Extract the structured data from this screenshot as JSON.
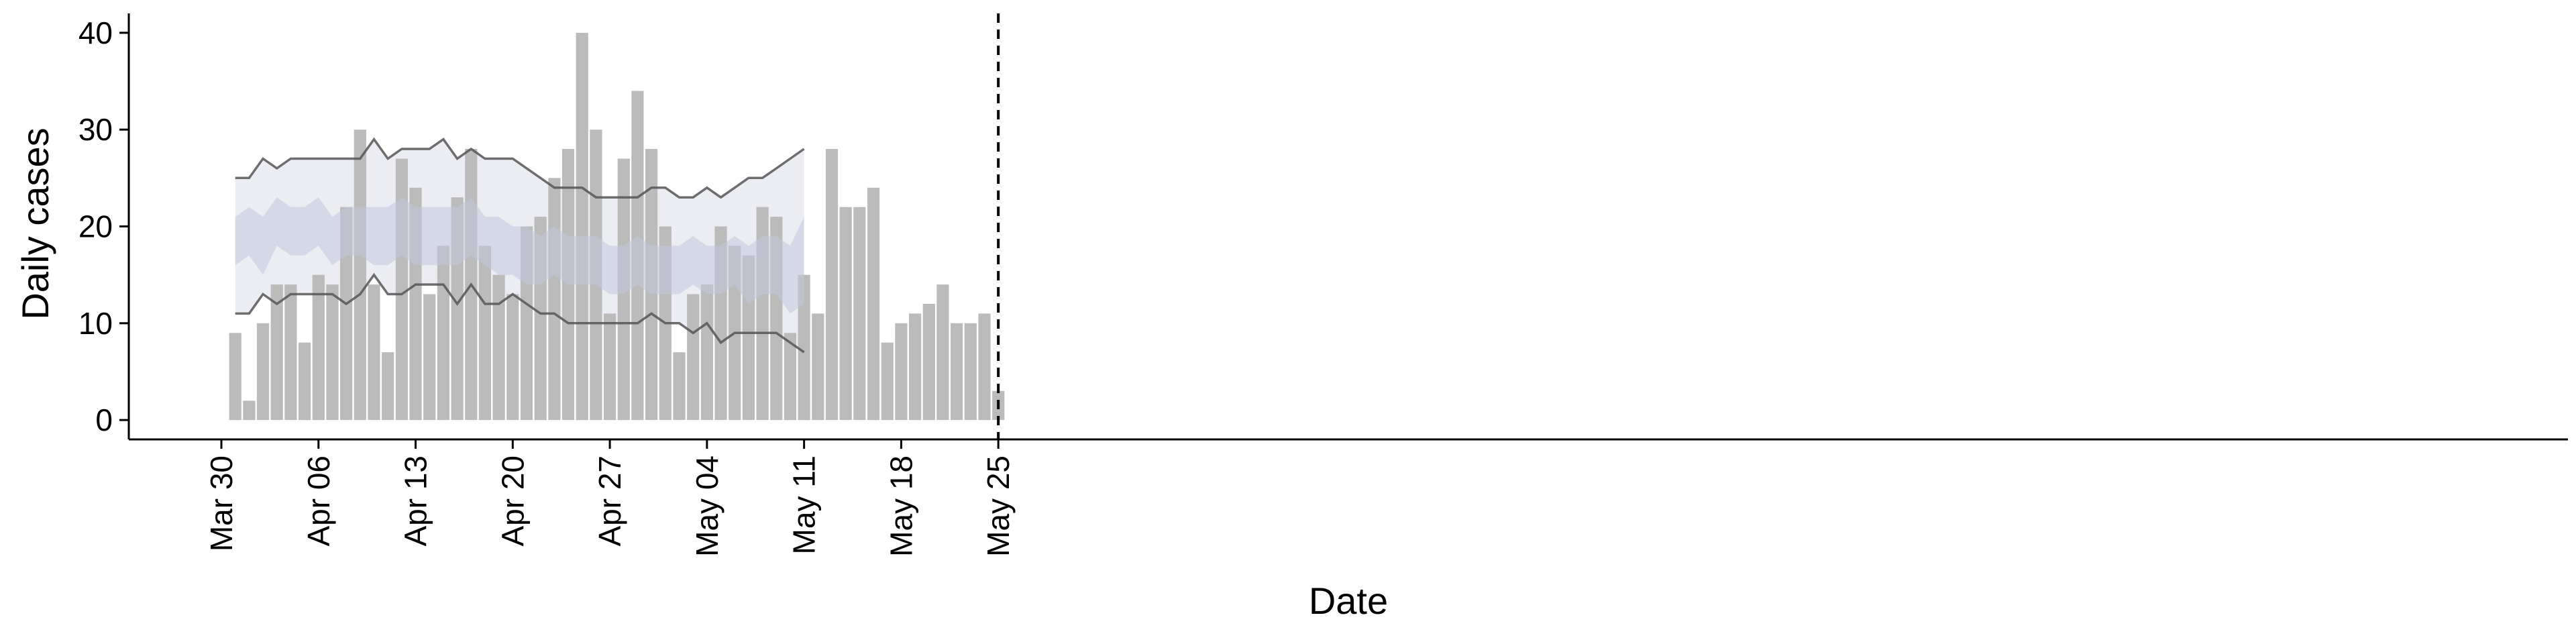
{
  "chart_data": {
    "type": "bar",
    "title": "",
    "xlabel": "Date",
    "ylabel": "Daily cases",
    "ylim": [
      -2,
      42
    ],
    "y_ticks": [
      0,
      10,
      20,
      30,
      40
    ],
    "x_range": [
      "2020-03-30",
      "2020-05-26"
    ],
    "x_ticks": [
      {
        "date": "2020-03-30",
        "label": "Mar 30"
      },
      {
        "date": "2020-04-06",
        "label": "Apr 06"
      },
      {
        "date": "2020-04-13",
        "label": "Apr 13"
      },
      {
        "date": "2020-04-20",
        "label": "Apr 20"
      },
      {
        "date": "2020-04-27",
        "label": "Apr 27"
      },
      {
        "date": "2020-05-04",
        "label": "May 04"
      },
      {
        "date": "2020-05-11",
        "label": "May 11"
      },
      {
        "date": "2020-05-18",
        "label": "May 18"
      },
      {
        "date": "2020-05-25",
        "label": "May 25"
      }
    ],
    "vline_date": "2020-05-25",
    "grid": false,
    "colors": {
      "bars": "#bbbbbb",
      "band_outer": "#e9ebf2",
      "band_inner": "#c2c8dc",
      "line_dark": "#555555",
      "line_light": "#999999"
    },
    "bars": {
      "dates": [
        "2020-03-31",
        "2020-04-01",
        "2020-04-02",
        "2020-04-03",
        "2020-04-04",
        "2020-04-05",
        "2020-04-06",
        "2020-04-07",
        "2020-04-08",
        "2020-04-09",
        "2020-04-10",
        "2020-04-11",
        "2020-04-12",
        "2020-04-13",
        "2020-04-14",
        "2020-04-15",
        "2020-04-16",
        "2020-04-17",
        "2020-04-18",
        "2020-04-19",
        "2020-04-20",
        "2020-04-21",
        "2020-04-22",
        "2020-04-23",
        "2020-04-24",
        "2020-04-25",
        "2020-04-26",
        "2020-04-27",
        "2020-04-28",
        "2020-04-29",
        "2020-04-30",
        "2020-05-01",
        "2020-05-02",
        "2020-05-03",
        "2020-05-04",
        "2020-05-05",
        "2020-05-06",
        "2020-05-07",
        "2020-05-08",
        "2020-05-09",
        "2020-05-10",
        "2020-05-11",
        "2020-05-12",
        "2020-05-13",
        "2020-05-14",
        "2020-05-15",
        "2020-05-16",
        "2020-05-17",
        "2020-05-18",
        "2020-05-19",
        "2020-05-20",
        "2020-05-21",
        "2020-05-22",
        "2020-05-23",
        "2020-05-24",
        "2020-05-25"
      ],
      "values": [
        9,
        2,
        10,
        14,
        14,
        8,
        15,
        14,
        22,
        30,
        14,
        7,
        27,
        24,
        13,
        18,
        23,
        28,
        18,
        15,
        13,
        20,
        21,
        25,
        28,
        40,
        30,
        11,
        27,
        34,
        28,
        20,
        7,
        13,
        14,
        20,
        18,
        17,
        22,
        21,
        9,
        15,
        11,
        28,
        22,
        22,
        24,
        8,
        10,
        11,
        12,
        14,
        10,
        10,
        11,
        3
      ]
    },
    "forecast": {
      "dates": [
        "2020-03-31",
        "2020-04-01",
        "2020-04-02",
        "2020-04-03",
        "2020-04-04",
        "2020-04-05",
        "2020-04-06",
        "2020-04-07",
        "2020-04-08",
        "2020-04-09",
        "2020-04-10",
        "2020-04-11",
        "2020-04-12",
        "2020-04-13",
        "2020-04-14",
        "2020-04-15",
        "2020-04-16",
        "2020-04-17",
        "2020-04-18",
        "2020-04-19",
        "2020-04-20",
        "2020-04-21",
        "2020-04-22",
        "2020-04-23",
        "2020-04-24",
        "2020-04-25",
        "2020-04-26",
        "2020-04-27",
        "2020-04-28",
        "2020-04-29",
        "2020-04-30",
        "2020-05-01",
        "2020-05-02",
        "2020-05-03",
        "2020-05-04",
        "2020-05-05",
        "2020-05-06",
        "2020-05-07",
        "2020-05-08",
        "2020-05-09",
        "2020-05-10",
        "2020-05-11"
      ],
      "outer_upper": [
        25,
        25,
        27,
        26,
        27,
        27,
        27,
        27,
        27,
        27,
        29,
        27,
        28,
        28,
        28,
        29,
        27,
        28,
        27,
        27,
        27,
        26,
        25,
        24,
        24,
        24,
        23,
        23,
        23,
        23,
        24,
        24,
        23,
        23,
        24,
        23,
        24,
        25,
        25,
        26,
        27,
        28
      ],
      "outer_lower": [
        11,
        11,
        13,
        12,
        13,
        13,
        13,
        13,
        12,
        13,
        15,
        13,
        13,
        14,
        14,
        14,
        12,
        14,
        12,
        12,
        13,
        12,
        11,
        11,
        10,
        10,
        10,
        10,
        10,
        10,
        11,
        10,
        10,
        9,
        10,
        8,
        9,
        9,
        9,
        9,
        8,
        7
      ],
      "inner_upper": [
        21,
        22,
        21,
        23,
        22,
        22,
        23,
        21,
        22,
        22,
        22,
        22,
        23,
        22,
        22,
        22,
        22,
        23,
        21,
        21,
        20,
        20,
        19,
        20,
        19,
        19,
        19,
        18,
        18,
        19,
        18,
        18,
        18,
        19,
        18,
        18,
        19,
        18,
        19,
        19,
        18,
        21
      ],
      "inner_lower": [
        16,
        17,
        15,
        18,
        17,
        17,
        18,
        16,
        17,
        17,
        16,
        16,
        17,
        16,
        16,
        16,
        16,
        17,
        16,
        15,
        15,
        14,
        14,
        15,
        14,
        14,
        14,
        13,
        13,
        14,
        13,
        13,
        13,
        14,
        13,
        13,
        14,
        12,
        13,
        13,
        11,
        12
      ]
    }
  }
}
